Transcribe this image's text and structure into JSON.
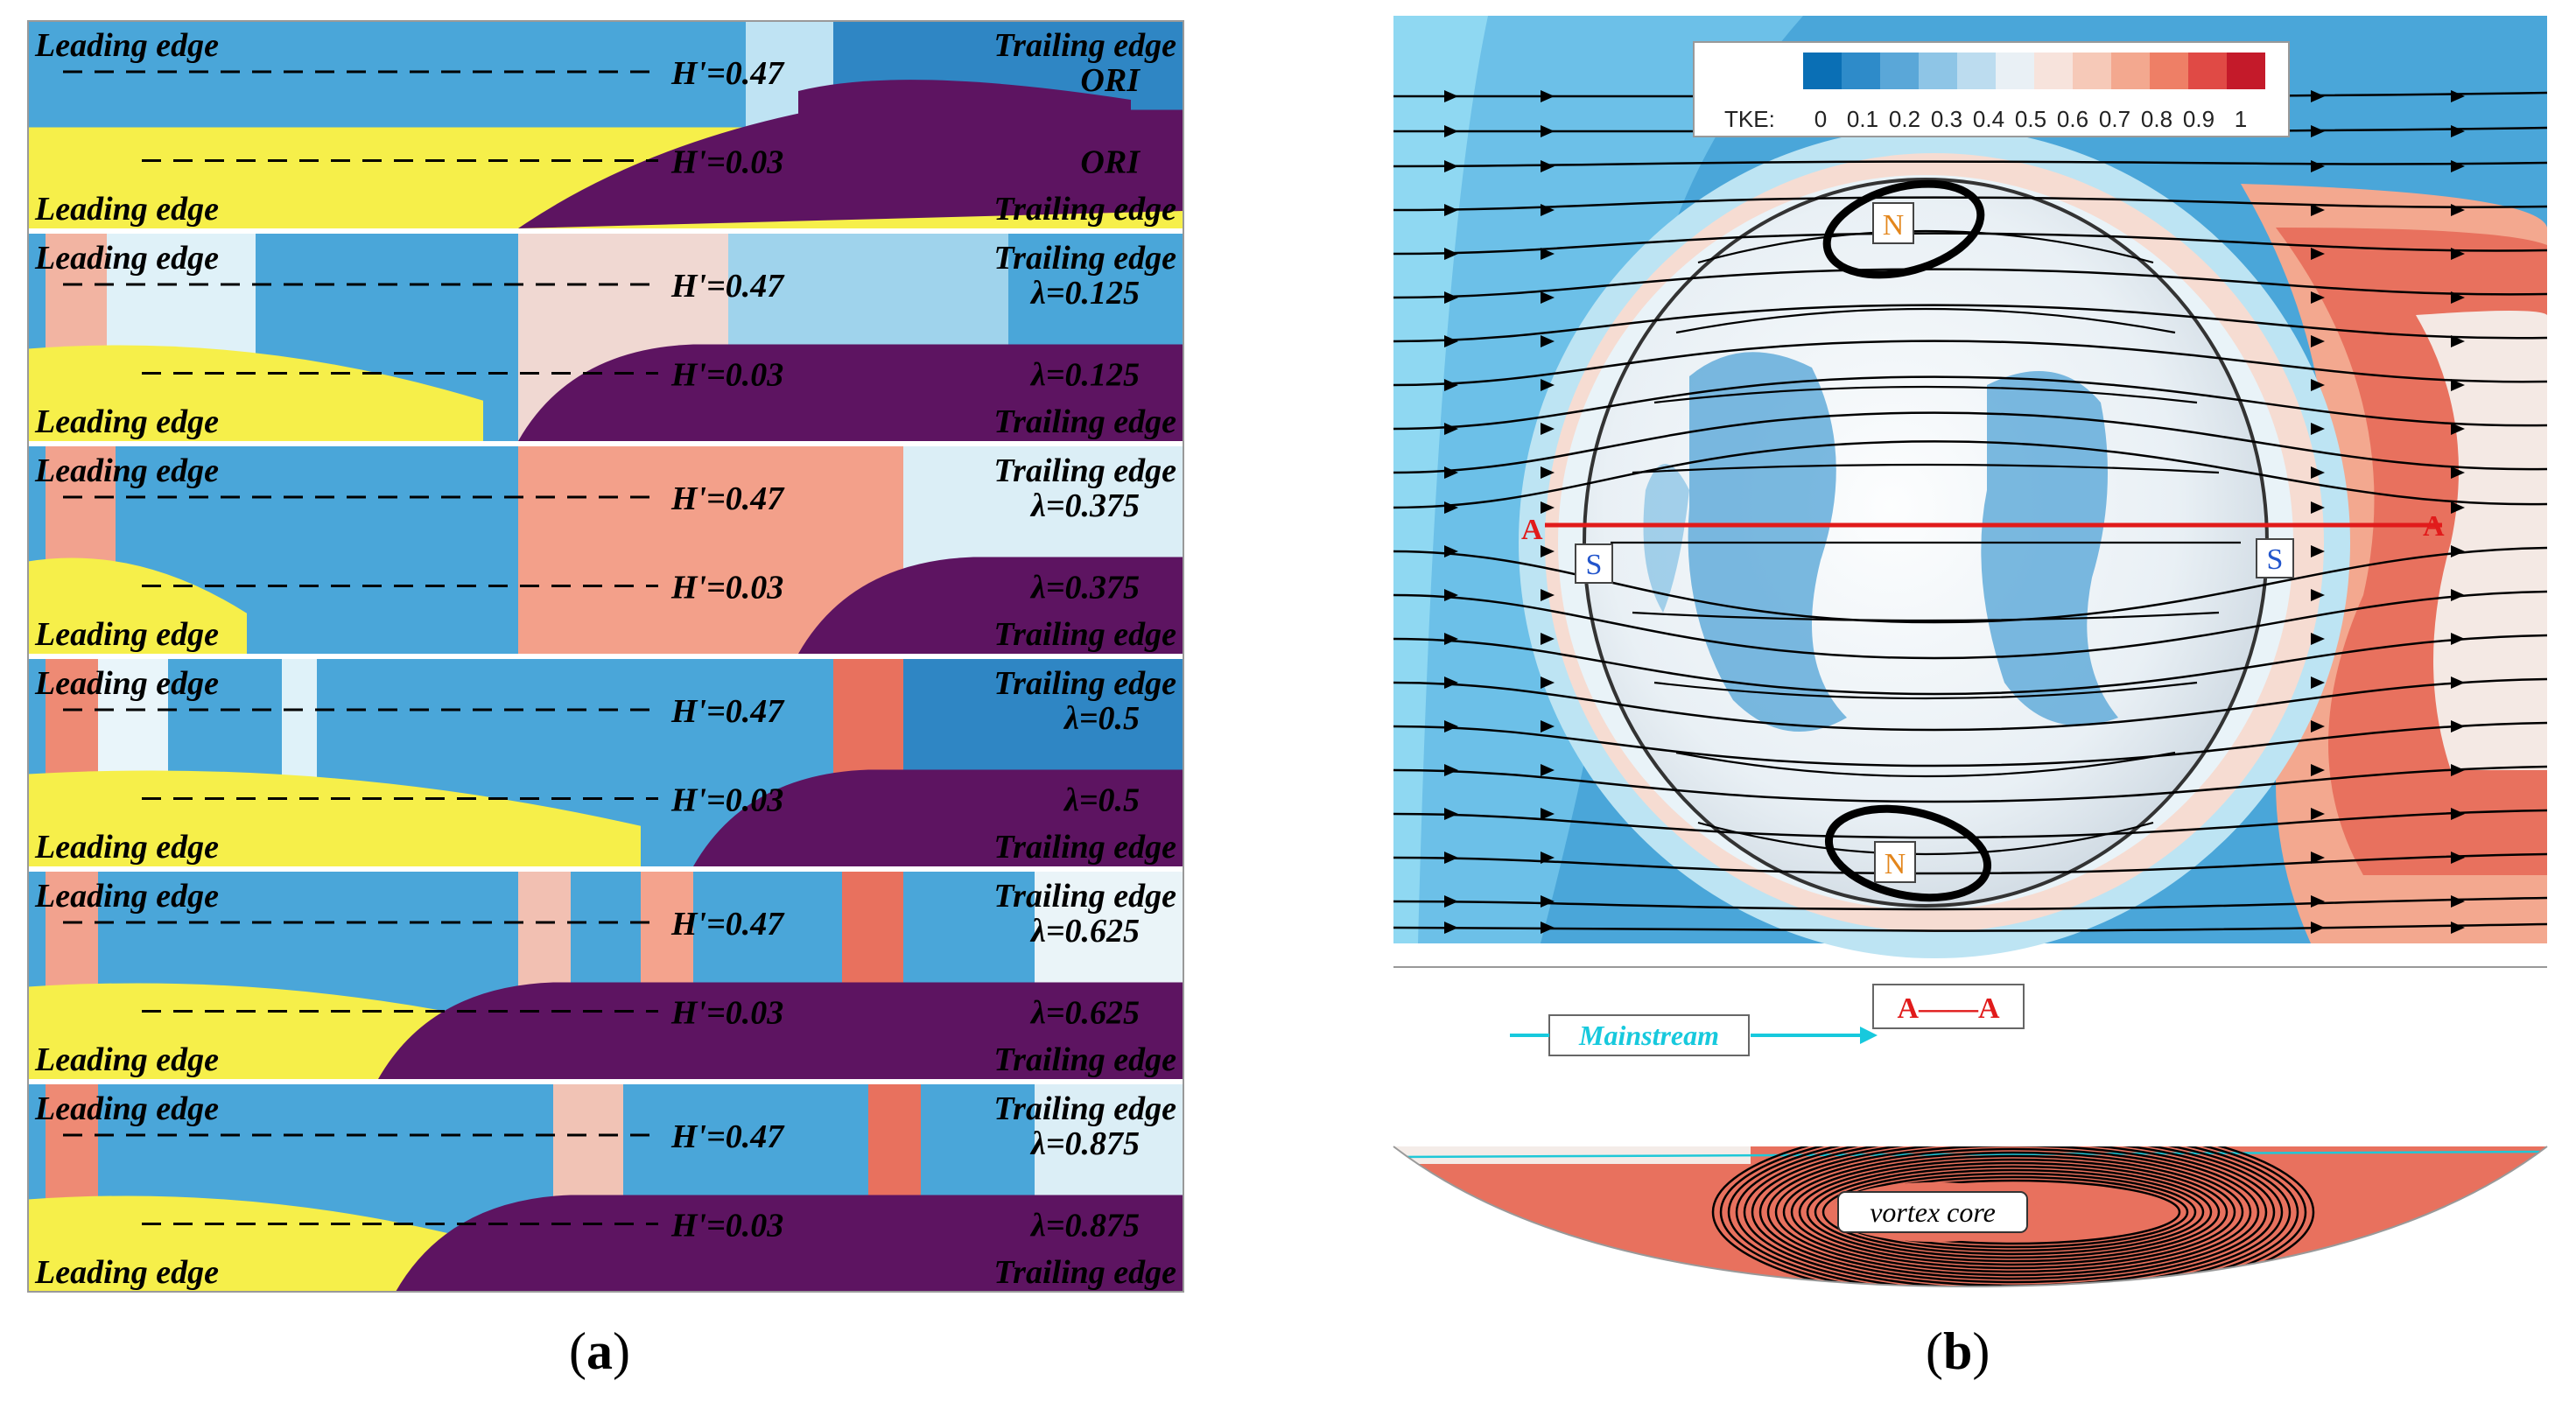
{
  "panel_a": {
    "rows": [
      {
        "top_label_left": "Leading edge",
        "top_label_right": "Trailing edge",
        "top_h": "H'=0.47",
        "top_lambda": "ORI",
        "bot_label_left": "Leading edge",
        "bot_label_right": "Trailing edge",
        "bot_h": "H'=0.03",
        "bot_lambda": "ORI"
      },
      {
        "top_label_left": "Leading edge",
        "top_label_right": "Trailing edge",
        "top_h": "H'=0.47",
        "top_lambda": "λ=0.125",
        "bot_label_left": "Leading edge",
        "bot_label_right": "Trailing edge",
        "bot_h": "H'=0.03",
        "bot_lambda": "λ=0.125"
      },
      {
        "top_label_left": "Leading edge",
        "top_label_right": "Trailing edge",
        "top_h": "H'=0.47",
        "top_lambda": "λ=0.375",
        "bot_label_left": "Leading edge",
        "bot_label_right": "Trailing edge",
        "bot_h": "H'=0.03",
        "bot_lambda": "λ=0.375"
      },
      {
        "top_label_left": "Leading edge",
        "top_label_right": "Trailing edge",
        "top_h": "H'=0.47",
        "top_lambda": "λ=0.5",
        "bot_label_left": "Leading edge",
        "bot_label_right": "Trailing edge",
        "bot_h": "H'=0.03",
        "bot_lambda": "λ=0.5"
      },
      {
        "top_label_left": "Leading edge",
        "top_label_right": "Trailing edge",
        "top_h": "H'=0.47",
        "top_lambda": "λ=0.625",
        "bot_label_left": "Leading edge",
        "bot_label_right": "Trailing edge",
        "bot_h": "H'=0.03",
        "bot_lambda": "λ=0.625"
      },
      {
        "top_label_left": "Leading edge",
        "top_label_right": "Trailing edge",
        "top_h": "H'=0.47",
        "top_lambda": "λ=0.875",
        "bot_label_left": "Leading edge",
        "bot_label_right": "Trailing edge",
        "bot_h": "H'=0.03",
        "bot_lambda": "λ=0.875"
      }
    ],
    "caption": "a"
  },
  "panel_b": {
    "colorbar": {
      "label": "TKE:",
      "ticks": [
        "0",
        "0.1",
        "0.2",
        "0.3",
        "0.4",
        "0.5",
        "0.6",
        "0.7",
        "0.8",
        "0.9",
        "1"
      ],
      "colors": [
        "#0a6fb5",
        "#2e8bc9",
        "#5aa7d8",
        "#8ec5e6",
        "#bcdcef",
        "#e9f0f5",
        "#f7e3dc",
        "#f6c9b8",
        "#f3a88f",
        "#ee7f66",
        "#e04a45",
        "#c41a2a"
      ]
    },
    "node_labels": [
      "N",
      "N"
    ],
    "saddle_labels": [
      "S",
      "S"
    ],
    "section_marks": [
      "A",
      "A"
    ],
    "section_title": "A——A",
    "mainstream_label": "Mainstream",
    "vortex_label": "vortex core",
    "caption": "b"
  },
  "colors": {
    "blue_field": "#4aa6d9",
    "light_blue": "#8fd2ef",
    "white_field": "#f4f7fa",
    "red_field": "#e8715e",
    "purple": "#5d1461",
    "yellow": "#f6ef4a",
    "line_red": "#e11b1b",
    "text_blue": "#2255cc",
    "text_orange": "#e3861c",
    "cyan_text": "#17c9dd"
  }
}
